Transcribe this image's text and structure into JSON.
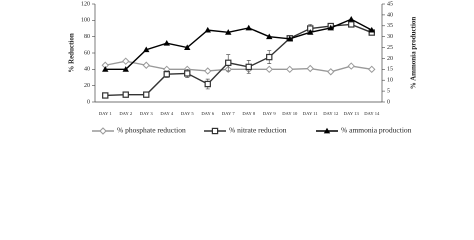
{
  "chart_data": {
    "type": "line",
    "categories": [
      "DAY 1",
      "DAY 2",
      "DAY 3",
      "DAY 4",
      "DAY 5",
      "DAY 6",
      "DAY 7",
      "DAY 8",
      "DAY 9",
      "DAY 10",
      "DAY 11",
      "DAY 12",
      "DAY 13",
      "DAY 14"
    ],
    "ylabel": "% Reduction",
    "y2label": "% Ammonia production",
    "ylim": [
      0,
      120
    ],
    "yticks": [
      0,
      20,
      40,
      60,
      80,
      100,
      120
    ],
    "y2lim": [
      0,
      45
    ],
    "y2ticks": [
      0,
      5,
      10,
      15,
      20,
      25,
      30,
      35,
      40,
      45
    ],
    "series": [
      {
        "name": "% phosphate reduction",
        "color": "#999999",
        "marker": "diamond",
        "values": [
          45,
          50,
          45,
          40,
          40,
          38,
          40,
          40,
          40,
          40,
          41,
          37,
          44,
          40
        ]
      },
      {
        "name": "% nitrate reduction",
        "color": "#333333",
        "marker": "square",
        "values": [
          8,
          9,
          9,
          34,
          35,
          22,
          48,
          43,
          55,
          78,
          90,
          93,
          95,
          85
        ],
        "errors": [
          0,
          0,
          0,
          4,
          5,
          6,
          10,
          8,
          8,
          3,
          5,
          3,
          2,
          3
        ]
      },
      {
        "name": "% ammonia production",
        "color": "#000000",
        "marker": "triangle",
        "axis": "y2",
        "values": [
          15,
          15,
          24,
          27,
          25,
          33,
          32,
          34,
          30,
          29,
          32,
          34,
          38,
          33
        ]
      }
    ]
  }
}
